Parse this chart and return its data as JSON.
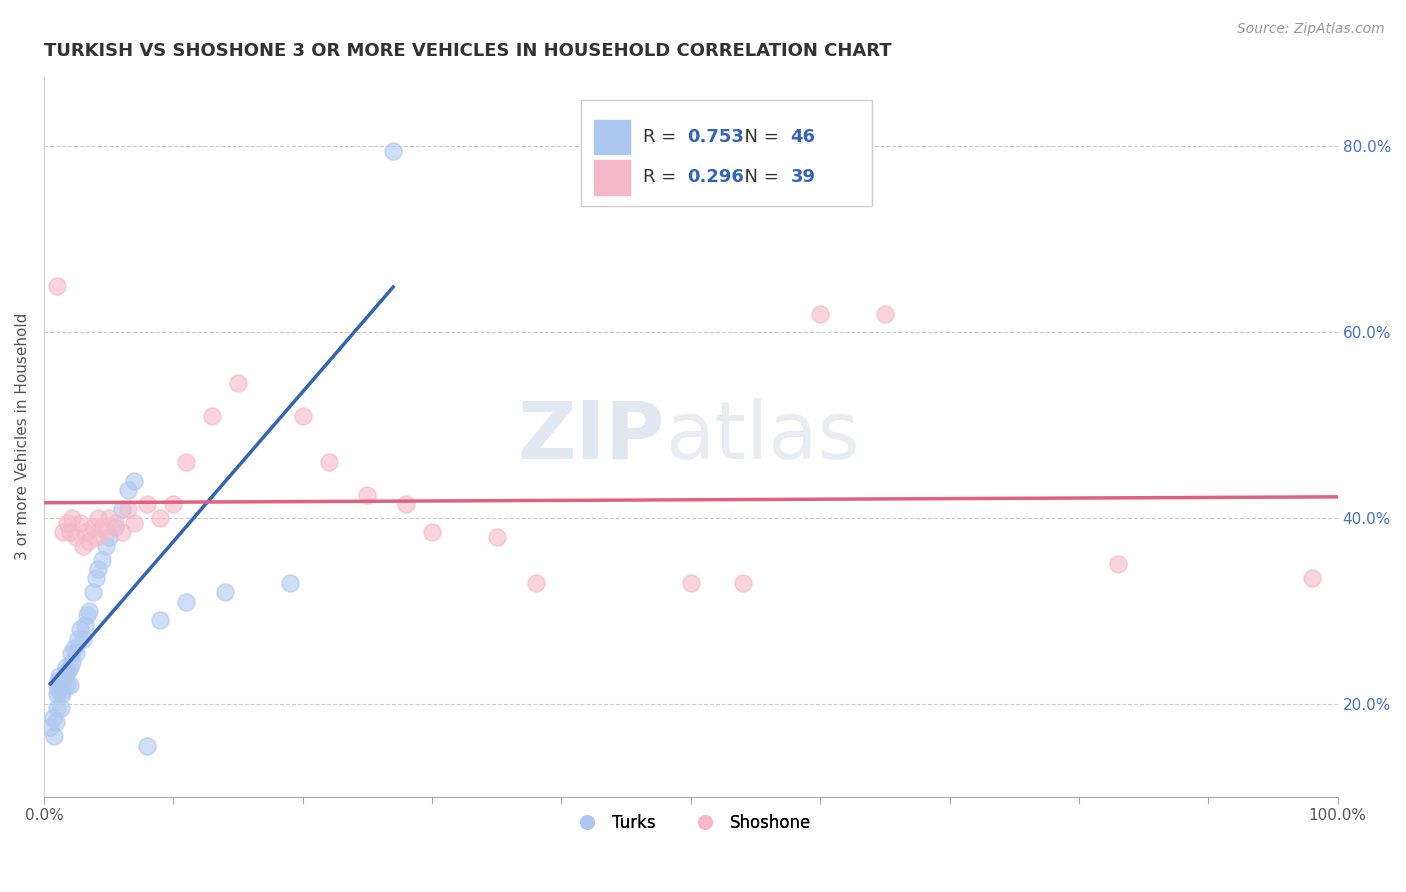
{
  "title": "TURKISH VS SHOSHONE 3 OR MORE VEHICLES IN HOUSEHOLD CORRELATION CHART",
  "source": "Source: ZipAtlas.com",
  "ylabel": "3 or more Vehicles in Household",
  "xmin": 0.0,
  "xmax": 1.0,
  "ymin": 0.1,
  "ymax": 0.875,
  "xticks": [
    0.0,
    0.1,
    0.2,
    0.3,
    0.4,
    0.5,
    0.6,
    0.7,
    0.8,
    0.9,
    1.0
  ],
  "xticklabels": [
    "0.0%",
    "",
    "",
    "",
    "",
    "",
    "",
    "",
    "",
    "",
    "100.0%"
  ],
  "yticks_right": [
    0.2,
    0.4,
    0.6,
    0.8
  ],
  "ytick_labels_right": [
    "20.0%",
    "40.0%",
    "60.0%",
    "80.0%"
  ],
  "turks_color": "#adc8f0",
  "shoshone_color": "#f5b8c8",
  "turks_line_color": "#3464b4",
  "shoshone_line_color": "#e06080",
  "R_turks": 0.753,
  "N_turks": 46,
  "R_shoshone": 0.296,
  "N_shoshone": 39,
  "legend_label_turks": "Turks",
  "legend_label_shoshone": "Shoshone",
  "turks_x": [
    0.005,
    0.007,
    0.008,
    0.009,
    0.01,
    0.01,
    0.01,
    0.011,
    0.011,
    0.012,
    0.013,
    0.014,
    0.015,
    0.015,
    0.016,
    0.017,
    0.018,
    0.019,
    0.02,
    0.02,
    0.021,
    0.022,
    0.023,
    0.025,
    0.026,
    0.028,
    0.03,
    0.032,
    0.033,
    0.035,
    0.038,
    0.04,
    0.042,
    0.045,
    0.048,
    0.05,
    0.055,
    0.06,
    0.065,
    0.07,
    0.08,
    0.09,
    0.11,
    0.14,
    0.19,
    0.27
  ],
  "turks_y": [
    0.175,
    0.185,
    0.165,
    0.18,
    0.195,
    0.21,
    0.22,
    0.215,
    0.225,
    0.23,
    0.195,
    0.21,
    0.215,
    0.225,
    0.23,
    0.24,
    0.22,
    0.235,
    0.22,
    0.24,
    0.255,
    0.245,
    0.26,
    0.255,
    0.27,
    0.28,
    0.27,
    0.285,
    0.295,
    0.3,
    0.32,
    0.335,
    0.345,
    0.355,
    0.37,
    0.38,
    0.39,
    0.41,
    0.43,
    0.44,
    0.155,
    0.29,
    0.31,
    0.32,
    0.33,
    0.795
  ],
  "shoshone_x": [
    0.01,
    0.015,
    0.018,
    0.02,
    0.022,
    0.025,
    0.028,
    0.03,
    0.032,
    0.035,
    0.038,
    0.04,
    0.042,
    0.045,
    0.048,
    0.05,
    0.055,
    0.06,
    0.065,
    0.07,
    0.08,
    0.09,
    0.1,
    0.11,
    0.13,
    0.15,
    0.2,
    0.22,
    0.25,
    0.28,
    0.3,
    0.35,
    0.38,
    0.5,
    0.54,
    0.6,
    0.65,
    0.83,
    0.98
  ],
  "shoshone_y": [
    0.65,
    0.385,
    0.395,
    0.385,
    0.4,
    0.38,
    0.395,
    0.37,
    0.385,
    0.375,
    0.39,
    0.38,
    0.4,
    0.39,
    0.385,
    0.4,
    0.395,
    0.385,
    0.41,
    0.395,
    0.415,
    0.4,
    0.415,
    0.46,
    0.51,
    0.545,
    0.51,
    0.46,
    0.425,
    0.415,
    0.385,
    0.38,
    0.33,
    0.33,
    0.33,
    0.62,
    0.62,
    0.35,
    0.335
  ],
  "watermark_zip": "ZIP",
  "watermark_atlas": "atlas",
  "background_color": "#ffffff",
  "grid_color": "#cccccc",
  "label_color": "#4472c4"
}
